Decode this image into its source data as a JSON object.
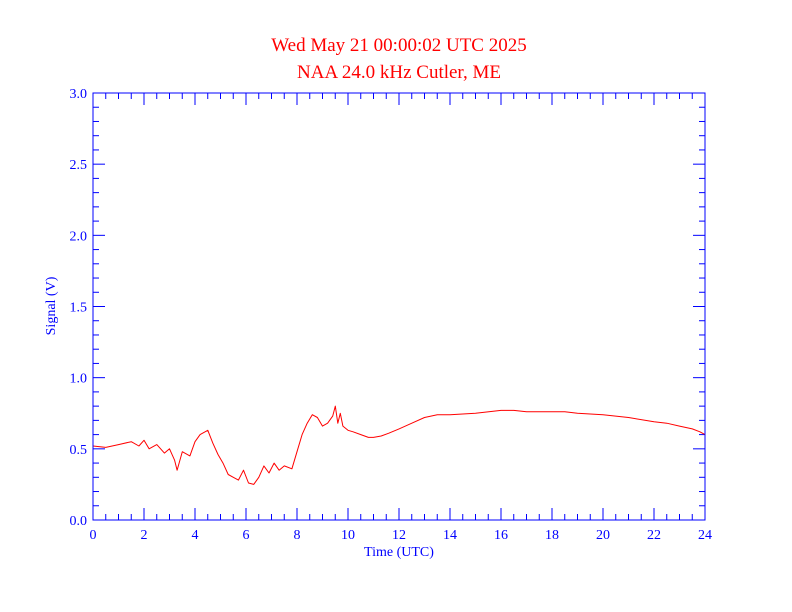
{
  "chart_data": {
    "type": "line",
    "title": "Wed May 21 00:00:02 UTC 2025",
    "subtitle": "NAA 24.0 kHz Cutler, ME",
    "xlabel": "Time (UTC)",
    "ylabel": "Signal (V)",
    "xlim": [
      0,
      24
    ],
    "ylim": [
      0,
      3.0
    ],
    "x_ticks": [
      0,
      2,
      4,
      6,
      8,
      10,
      12,
      14,
      16,
      18,
      20,
      22,
      24
    ],
    "x_tick_labels": [
      "0",
      "2",
      "4",
      "6",
      "8",
      "10",
      "12",
      "14",
      "16",
      "18",
      "20",
      "22",
      "24"
    ],
    "y_ticks": [
      0,
      0.5,
      1.0,
      1.5,
      2.0,
      2.5,
      3.0
    ],
    "y_tick_labels": [
      "0.0",
      "0.5",
      "1.0",
      "1.5",
      "2.0",
      "2.5",
      "3.0"
    ],
    "grid": false,
    "series": [
      {
        "color": "#ff0000",
        "x": [
          0,
          0.5,
          1.0,
          1.5,
          1.8,
          2.0,
          2.2,
          2.5,
          2.8,
          3.0,
          3.2,
          3.3,
          3.5,
          3.8,
          4.0,
          4.2,
          4.5,
          4.7,
          4.9,
          5.1,
          5.3,
          5.5,
          5.7,
          5.9,
          6.1,
          6.3,
          6.5,
          6.7,
          6.9,
          7.1,
          7.3,
          7.5,
          7.8,
          8.0,
          8.2,
          8.4,
          8.6,
          8.8,
          9.0,
          9.2,
          9.4,
          9.5,
          9.6,
          9.7,
          9.8,
          10.0,
          10.2,
          10.5,
          10.8,
          11.0,
          11.3,
          11.6,
          12.0,
          12.5,
          13.0,
          13.5,
          14.0,
          15.0,
          16.0,
          16.5,
          17.0,
          18.0,
          18.5,
          19.0,
          20.0,
          21.0,
          22.0,
          22.5,
          23.0,
          23.5,
          23.8,
          24.0
        ],
        "values": [
          0.52,
          0.51,
          0.53,
          0.55,
          0.52,
          0.56,
          0.5,
          0.53,
          0.47,
          0.5,
          0.42,
          0.35,
          0.48,
          0.45,
          0.55,
          0.6,
          0.63,
          0.54,
          0.46,
          0.4,
          0.32,
          0.3,
          0.28,
          0.35,
          0.26,
          0.25,
          0.3,
          0.38,
          0.33,
          0.4,
          0.35,
          0.38,
          0.36,
          0.48,
          0.6,
          0.68,
          0.74,
          0.72,
          0.66,
          0.68,
          0.73,
          0.8,
          0.68,
          0.75,
          0.66,
          0.63,
          0.62,
          0.6,
          0.58,
          0.58,
          0.59,
          0.61,
          0.64,
          0.68,
          0.72,
          0.74,
          0.74,
          0.75,
          0.77,
          0.77,
          0.76,
          0.76,
          0.76,
          0.75,
          0.74,
          0.72,
          0.69,
          0.68,
          0.66,
          0.64,
          0.62,
          0.6
        ]
      }
    ]
  }
}
